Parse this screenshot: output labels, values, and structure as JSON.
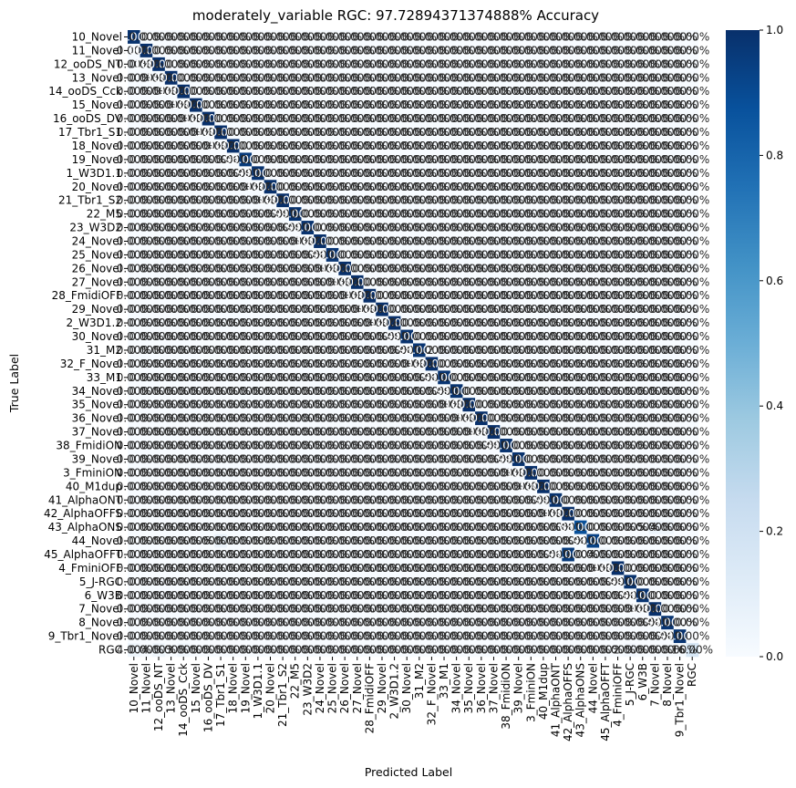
{
  "chart_data": {
    "type": "heatmap",
    "title": "moderately_variable RGC: 97.72894371374888% Accuracy",
    "xlabel": "Predicted Label",
    "ylabel": "True Label",
    "row_labels": [
      "10_Novel",
      "11_Novel",
      "12_ooDS_NT",
      "13_Novel",
      "14_ooDS_Cck",
      "15_Novel",
      "16_ooDS_DV",
      "17_Tbr1_S1",
      "18_Novel",
      "19_Novel",
      "1_W3D1.1",
      "20_Novel",
      "21_Tbr1_S2",
      "22_M5",
      "23_W3D2",
      "24_Novel",
      "25_Novel",
      "26_Novel",
      "27_Novel",
      "28_FmidiOFF",
      "29_Novel",
      "2_W3D1.2",
      "30_Novel",
      "31_M2",
      "32_F_Novel",
      "33_M1",
      "34_Novel",
      "35_Novel",
      "36_Novel",
      "37_Novel",
      "38_FmidiON",
      "39_Novel",
      "3_FminiON",
      "40_M1dup",
      "41_AlphaONT",
      "42_AlphaOFFS",
      "43_AlphaONS",
      "44_Novel",
      "45_AlphaOFFT",
      "4_FminiOFF",
      "5_J-RGC",
      "6_W3B",
      "7_Novel",
      "8_Novel",
      "9_Tbr1_Novel",
      "RGC"
    ],
    "col_labels": [
      "10_Novel",
      "11_Novel",
      "12_ooDS_NT",
      "13_Novel",
      "14_ooDS_Cck",
      "15_Novel",
      "16_ooDS_DV",
      "17_Tbr1_S1",
      "18_Novel",
      "19_Novel",
      "1_W3D1.1",
      "20_Novel",
      "21_Tbr1_S2",
      "22_M5",
      "23_W3D2",
      "24_Novel",
      "25_Novel",
      "26_Novel",
      "27_Novel",
      "28_FmidiOFF",
      "29_Novel",
      "2_W3D1.2",
      "30_Novel",
      "31_M2",
      "32_F_Novel",
      "33_M1",
      "34_Novel",
      "35_Novel",
      "36_Novel",
      "37_Novel",
      "38_FmidiON",
      "39_Novel",
      "3_FminiON",
      "40_M1dup",
      "41_AlphaONT",
      "42_AlphaOFFS",
      "43_AlphaONS",
      "44_Novel",
      "45_AlphaOFFT",
      "4_FminiOFF",
      "5_J-RGC",
      "6_W3B",
      "7_Novel",
      "8_Novel",
      "9_Tbr1_Novel",
      "RGC"
    ],
    "visible_row_labels": [
      "10_Novel",
      "11_Novel",
      "12_ooDS_NT",
      "13_Novel",
      "14_ooDS_Cck",
      "15_Novel",
      "16_ooDS_DV",
      "17_Tbr1_S1",
      "18_Novel",
      "19_Novel",
      "1_W3D1.1",
      "20_Novel",
      "21_Tbr1_S2",
      "22_M5",
      "23_W3D2",
      "24_Novel",
      "25_Novel",
      "26_Novel",
      "27_Novel",
      "28_FmidiOFF",
      "29_Novel",
      "2_W3D1.2",
      "30_Novel",
      "31_M2",
      "32_F_Novel",
      "33_M1",
      "34_Novel",
      "35_Novel",
      "36_Novel",
      "37_Novel",
      "38_FmidiON",
      "39_Novel",
      "3_FminiON",
      "40_M1dup",
      "41_AlphaONT",
      "42_AlphaOFFS",
      "43_AlphaONS",
      "44_Novel",
      "45_AlphaOFFT",
      "4_FminiOFF",
      "5_J-RGC",
      "6_W3B",
      "7_Novel",
      "8_Novel",
      "9_Tbr1_Novel",
      "RGC"
    ],
    "diagonal": [
      0.99,
      1.0,
      1.0,
      1.0,
      1.0,
      1.0,
      1.0,
      1.0,
      1.0,
      0.96,
      0.99,
      1.0,
      1.0,
      0.99,
      0.99,
      1.0,
      0.98,
      1.0,
      1.0,
      1.0,
      1.0,
      1.0,
      0.99,
      0.98,
      1.0,
      0.98,
      0.99,
      1.0,
      1.0,
      1.0,
      0.99,
      0.99,
      1.0,
      1.0,
      0.99,
      1.0,
      0.88,
      0.93,
      0.04,
      1.0,
      0.99,
      0.98,
      1.0,
      0.98,
      0.98,
      0.16
    ],
    "off_diagonal": [
      {
        "row": "45_AlphaOFFT",
        "col": "42_AlphaOFFS",
        "value": 0.96
      },
      {
        "row": "43_AlphaONS",
        "col": "7_Novel",
        "value": 0.05
      },
      {
        "row": "43_AlphaONS",
        "col": "8_Novel",
        "value": 0.04
      },
      {
        "row": "44_Novel",
        "col": "17_Tbr1_S1",
        "value": 0.06
      },
      {
        "row": "31_M2",
        "col": "33_M1",
        "value": 0.02
      },
      {
        "row": "RGC",
        "col": "10_Novel",
        "value": 0.04
      },
      {
        "row": "RGC",
        "col": "12_ooDS_NT",
        "value": 0.04
      },
      {
        "row": "RGC",
        "col": "14_ooDS_Cck",
        "value": 0.03
      },
      {
        "row": "RGC",
        "col": "5_J-RGC",
        "value": 0.02
      }
    ],
    "default_offdiag_label": "0.00%",
    "vmin": 0.0,
    "vmax": 1.0,
    "colorbar_ticks": [
      "0.0",
      "0.2",
      "0.4",
      "0.6",
      "0.8",
      "1.0"
    ],
    "colorbar_values": [
      0.0,
      0.2,
      0.4,
      0.6,
      0.8,
      1.0
    ],
    "colormap": "Blues",
    "cell_border_color": "#ffffff"
  }
}
